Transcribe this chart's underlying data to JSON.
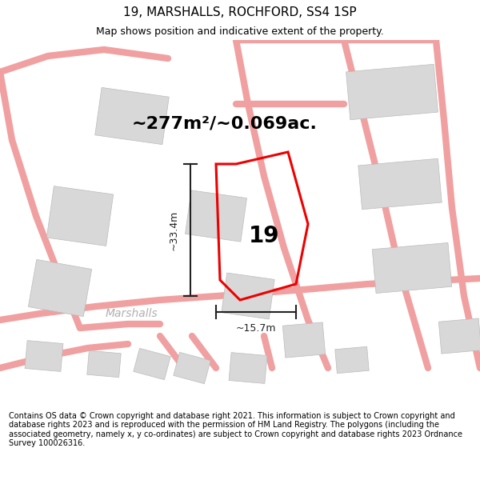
{
  "title": "19, MARSHALLS, ROCHFORD, SS4 1SP",
  "subtitle": "Map shows position and indicative extent of the property.",
  "area_text": "~277m²/~0.069ac.",
  "label_19": "19",
  "label_marshalls": "Marshalls",
  "dim_vertical": "~33.4m",
  "dim_horizontal": "~15.7m",
  "footer": "Contains OS data © Crown copyright and database right 2021. This information is subject to Crown copyright and database rights 2023 and is reproduced with the permission of HM Land Registry. The polygons (including the associated geometry, namely x, y co-ordinates) are subject to Crown copyright and database rights 2023 Ordnance Survey 100026316.",
  "bg_color": "#ffffff",
  "map_bg": "#f7f7f7",
  "road_color": "#f0a0a0",
  "building_color": "#d8d8d8",
  "property_color": "#ee0000",
  "dim_color": "#222222",
  "text_color": "#000000",
  "marshalls_color": "#b0b0b0",
  "title_fontsize": 11,
  "subtitle_fontsize": 9,
  "area_fontsize": 16,
  "label_fontsize": 20,
  "dim_fontsize": 9,
  "footer_fontsize": 7
}
